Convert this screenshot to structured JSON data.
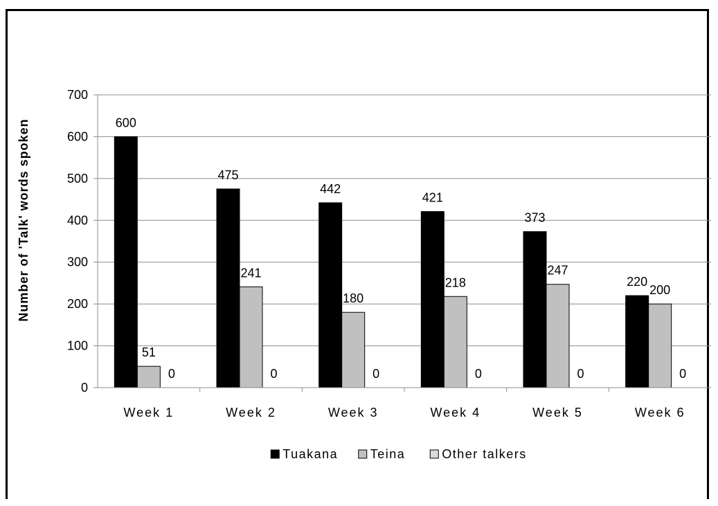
{
  "chart_data": {
    "type": "bar",
    "categories": [
      "Week 1",
      "Week 2",
      "Week 3",
      "Week 4",
      "Week 5",
      "Week 6"
    ],
    "series": [
      {
        "name": "Tuakana",
        "values": [
          600,
          475,
          442,
          421,
          373,
          220
        ],
        "color": "#000000"
      },
      {
        "name": "Teina",
        "values": [
          51,
          241,
          180,
          218,
          247,
          200
        ],
        "color": "#c0c0c0"
      },
      {
        "name": "Other talkers",
        "values": [
          0,
          0,
          0,
          0,
          0,
          0
        ],
        "color": "#d9d9d9"
      }
    ],
    "title": "",
    "xlabel": "",
    "ylabel": "Number of 'Talk' words spoken",
    "ylim": [
      0,
      700
    ],
    "yticks": [
      0,
      100,
      200,
      300,
      400,
      500,
      600,
      700
    ],
    "grid": true,
    "legend_position": "bottom",
    "data_labels": true
  }
}
